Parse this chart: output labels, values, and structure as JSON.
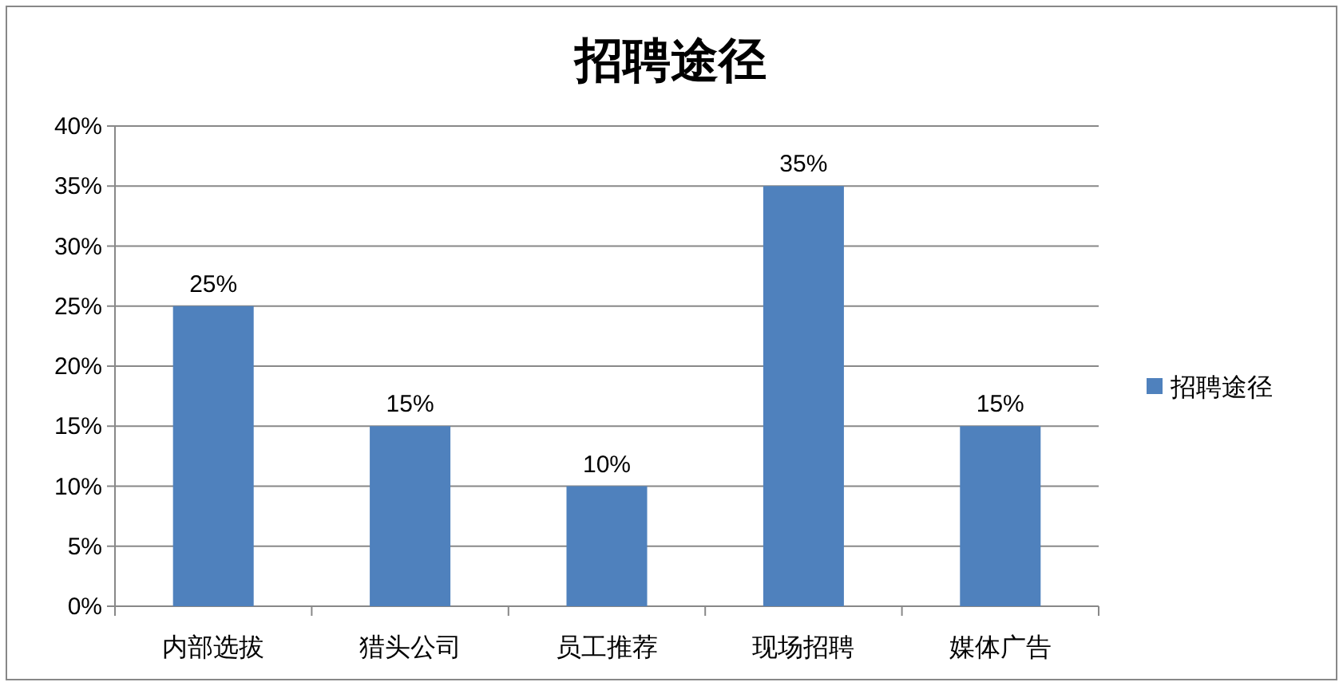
{
  "chart_data": {
    "type": "bar",
    "title": "招聘途径",
    "categories": [
      "内部选拔",
      "猎头公司",
      "员工推荐",
      "现场招聘",
      "媒体广告"
    ],
    "series": [
      {
        "name": "招聘途径",
        "color": "#4f81bd",
        "values": [
          25,
          15,
          10,
          35,
          15
        ],
        "value_labels": [
          "25%",
          "15%",
          "10%",
          "35%",
          "15%"
        ]
      }
    ],
    "ylim": [
      0,
      40
    ],
    "yticks": [
      {
        "value": 0,
        "label": "0%"
      },
      {
        "value": 5,
        "label": "5%"
      },
      {
        "value": 10,
        "label": "10%"
      },
      {
        "value": 15,
        "label": "15%"
      },
      {
        "value": 20,
        "label": "20%"
      },
      {
        "value": 25,
        "label": "25%"
      },
      {
        "value": 30,
        "label": "30%"
      },
      {
        "value": 35,
        "label": "35%"
      },
      {
        "value": 40,
        "label": "40%"
      }
    ],
    "grid": "y",
    "legend": "right"
  }
}
